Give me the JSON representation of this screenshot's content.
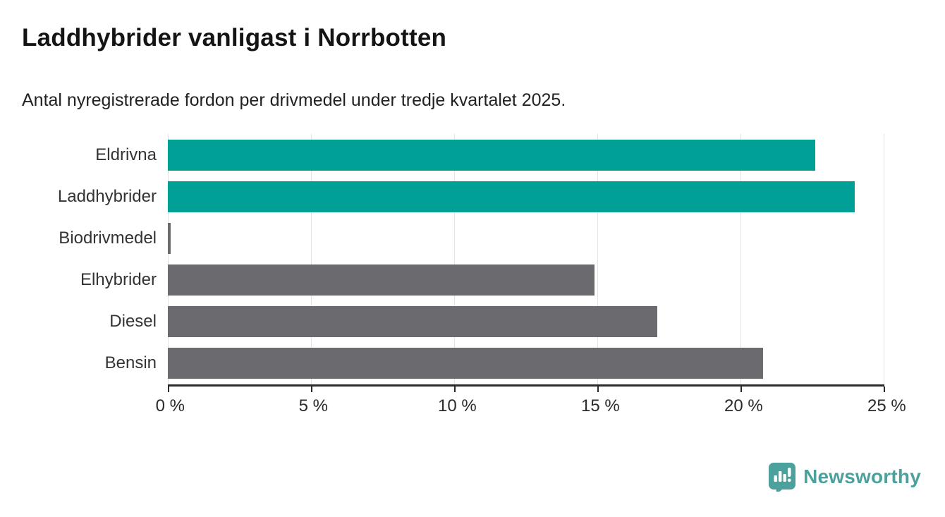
{
  "header": {
    "title": "Laddhybrider vanligast i Norrbotten",
    "subtitle": "Antal nyregistrerade fordon per drivmedel under tredje kvartalet 2025."
  },
  "chart_data": {
    "type": "bar",
    "orientation": "horizontal",
    "title": "Laddhybrider vanligast i Norrbotten",
    "subtitle": "Antal nyregistrerade fordon per drivmedel under tredje kvartalet 2025.",
    "categories": [
      "Eldrivna",
      "Laddhybrider",
      "Biodrivmedel",
      "Elhybrider",
      "Diesel",
      "Bensin"
    ],
    "values": [
      22.6,
      24.0,
      0.1,
      14.9,
      17.1,
      20.8
    ],
    "highlighted": [
      true,
      true,
      false,
      false,
      false,
      false
    ],
    "unit": "%",
    "xlabel": "",
    "ylabel": "",
    "xlim": [
      0,
      25
    ],
    "x_ticks": [
      0,
      5,
      10,
      15,
      20,
      25
    ],
    "x_tick_labels": [
      "0 %",
      "5 %",
      "10 %",
      "15 %",
      "20 %",
      "25 %"
    ],
    "grid": true,
    "legend": "none",
    "colors": {
      "highlight": "#00a096",
      "base": "#6b6b6f",
      "gridline": "#e3e3e3",
      "axis": "#2b2b2b"
    }
  },
  "footer": {
    "brand": "Newsworthy",
    "brand_color": "#4da19c",
    "logo_icon": "speech-bubble-bar-chart-icon"
  }
}
